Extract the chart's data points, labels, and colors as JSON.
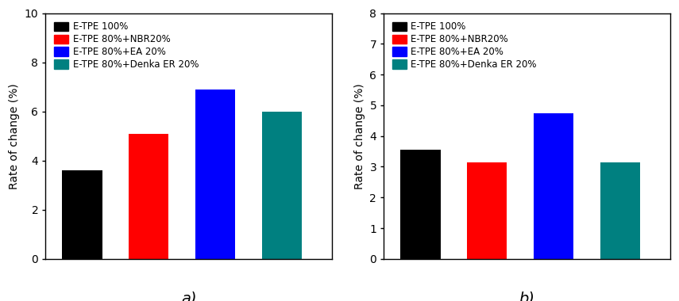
{
  "chart_a": {
    "values": [
      3.6,
      5.1,
      6.9,
      6.0
    ],
    "colors": [
      "#000000",
      "#ff0000",
      "#0000ff",
      "#008080"
    ],
    "ylim": [
      0,
      10
    ],
    "yticks": [
      0,
      2,
      4,
      6,
      8,
      10
    ],
    "ylabel": "Rate of change (%)",
    "label": "a)"
  },
  "chart_b": {
    "values": [
      3.55,
      3.15,
      4.75,
      3.15
    ],
    "colors": [
      "#000000",
      "#ff0000",
      "#0000ff",
      "#008080"
    ],
    "ylim": [
      0,
      8
    ],
    "yticks": [
      0,
      1,
      2,
      3,
      4,
      5,
      6,
      7,
      8
    ],
    "ylabel": "Rate of change (%)",
    "label": "b)"
  },
  "legend_labels": [
    "E-TPE 100%",
    "E-TPE 80%+NBR20%",
    "E-TPE 80%+EA 20%",
    "E-TPE 80%+Denka ER 20%"
  ],
  "legend_colors": [
    "#000000",
    "#ff0000",
    "#0000ff",
    "#008080"
  ],
  "bar_width": 0.6,
  "x_positions": [
    1,
    2,
    3,
    4
  ],
  "figsize": [
    8.55,
    3.8
  ],
  "dpi": 100,
  "label_fontsize": 14,
  "tick_fontsize": 10,
  "ylabel_fontsize": 10,
  "legend_fontsize": 8.5
}
